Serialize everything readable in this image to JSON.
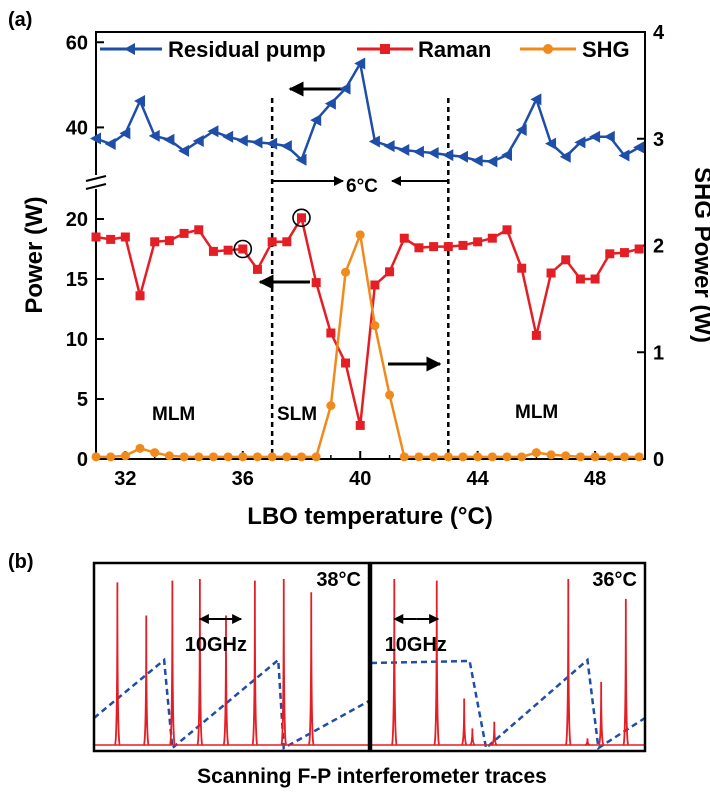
{
  "colors": {
    "pump": "#1f4ea8",
    "raman": "#e31e24",
    "shg": "#f08a1c",
    "trace": "#e31e24",
    "ramp": "#1f4ea8",
    "axis": "#000000"
  },
  "chart_data": [
    {
      "panel_label": "(a)",
      "type": "line",
      "xlabel": "LBO temperature (°C)",
      "ylabel_left": "Power (W)",
      "ylabel_right": "SHG Power (W)",
      "xlim": [
        31,
        49.7
      ],
      "xticks": [
        "32",
        "36",
        "40",
        "44",
        "48"
      ],
      "xtick_values": [
        32,
        36,
        40,
        44,
        48
      ],
      "left_axis_broken": true,
      "ylim_left_lower": [
        0,
        22
      ],
      "yticks_left_lower": [
        "0",
        "5",
        "10",
        "15",
        "20"
      ],
      "ytick_values_left_lower": [
        0,
        5,
        10,
        15,
        20
      ],
      "ylim_left_upper": [
        30,
        61
      ],
      "yticks_left_upper": [
        "40",
        "60"
      ],
      "ytick_values_left_upper": [
        40,
        60
      ],
      "ylim_right": [
        0,
        4
      ],
      "yticks_right": [
        "0",
        "1",
        "2",
        "3",
        "4"
      ],
      "ytick_values_right": [
        0,
        1,
        2,
        3,
        4
      ],
      "legend": [
        "Residual pump",
        "Raman",
        "SHG"
      ],
      "series": [
        {
          "name": "Residual pump",
          "axis": "left-upper",
          "marker": "triangle-left",
          "x": [
            31,
            31.5,
            32,
            32.5,
            33,
            33.5,
            34,
            34.5,
            35,
            35.5,
            36,
            36.5,
            37,
            37.5,
            38,
            38.5,
            39,
            39.5,
            40,
            40.5,
            41,
            41.5,
            42,
            42.5,
            43,
            43.5,
            44,
            44.5,
            45,
            45.5,
            46,
            46.5,
            47,
            47.5,
            48,
            48.5,
            49,
            49.5
          ],
          "values": [
            37.4,
            36.1,
            38.6,
            46.2,
            38.0,
            37.1,
            34.5,
            36.8,
            39.1,
            37.8,
            36.9,
            36.5,
            36.2,
            35.6,
            32.4,
            41.7,
            45.6,
            49.1,
            55.0,
            36.7,
            35.6,
            34.7,
            34.3,
            34.0,
            33.5,
            33.1,
            32.2,
            32.0,
            33.5,
            39.4,
            46.6,
            36.2,
            33.1,
            36.5,
            37.8,
            37.8,
            33.4,
            35.3
          ]
        },
        {
          "name": "Raman",
          "axis": "left-lower",
          "marker": "square",
          "x": [
            31,
            31.5,
            32,
            32.5,
            33,
            33.5,
            34,
            34.5,
            35,
            35.5,
            36,
            36.5,
            37,
            37.5,
            38,
            38.5,
            39,
            39.5,
            40,
            40.5,
            41,
            41.5,
            42,
            42.5,
            43,
            43.5,
            44,
            44.5,
            45,
            45.5,
            46,
            46.5,
            47,
            47.5,
            48,
            48.5,
            49,
            49.5
          ],
          "values": [
            18.5,
            18.3,
            18.5,
            13.6,
            18.1,
            18.2,
            18.8,
            19.1,
            17.3,
            17.4,
            17.5,
            15.8,
            18.1,
            18.1,
            20.1,
            14.7,
            10.5,
            8.0,
            2.8,
            14.5,
            15.6,
            18.4,
            17.6,
            17.7,
            17.7,
            17.8,
            18.1,
            18.4,
            19.1,
            15.9,
            10.3,
            15.5,
            16.6,
            15.0,
            15.0,
            17.1,
            17.2,
            17.5
          ]
        },
        {
          "name": "SHG",
          "axis": "right",
          "marker": "circle",
          "x": [
            31,
            31.5,
            32,
            32.5,
            33,
            33.5,
            34,
            34.5,
            35,
            35.5,
            36,
            36.5,
            37,
            37.5,
            38,
            38.5,
            39,
            39.5,
            40,
            40.5,
            41,
            41.5,
            42,
            42.5,
            43,
            43.5,
            44,
            44.5,
            45,
            45.5,
            46,
            46.5,
            47,
            47.5,
            48,
            48.5,
            49,
            49.5
          ],
          "values": [
            0.02,
            0.02,
            0.03,
            0.1,
            0.06,
            0.03,
            0.02,
            0.02,
            0.02,
            0.02,
            0.02,
            0.02,
            0.02,
            0.02,
            0.02,
            0.02,
            0.5,
            1.75,
            2.1,
            1.25,
            0.6,
            0.02,
            0.02,
            0.02,
            0.02,
            0.02,
            0.02,
            0.02,
            0.02,
            0.02,
            0.06,
            0.04,
            0.03,
            0.02,
            0.02,
            0.02,
            0.02,
            0.02
          ]
        }
      ],
      "annotations": {
        "region_left": "MLM",
        "region_center": "SLM",
        "region_right": "MLM",
        "span_label": "6°C",
        "boundary_temps": [
          37,
          43
        ],
        "circled_points_raman": [
          36,
          38
        ]
      }
    },
    {
      "panel_label": "(b)",
      "type": "line",
      "title": "Scanning F-P interferometer traces",
      "panels": [
        {
          "label": "38°C",
          "spacing_label": "10GHz",
          "peak_positions": [
            0.085,
            0.19,
            0.285,
            0.385,
            0.48,
            0.585,
            0.69,
            0.79
          ],
          "peak_heights": [
            0.98,
            0.78,
            0.99,
            1.0,
            0.78,
            0.99,
            1.0,
            0.92
          ]
        },
        {
          "label": "36°C",
          "spacing_label": "10GHz",
          "peak_positions": [
            0.085,
            0.24,
            0.34,
            0.37,
            0.45,
            0.72,
            0.79,
            0.84,
            0.93
          ],
          "peak_heights": [
            1.0,
            0.99,
            0.28,
            0.1,
            0.14,
            1.0,
            0.04,
            0.38,
            0.88
          ]
        }
      ]
    }
  ]
}
